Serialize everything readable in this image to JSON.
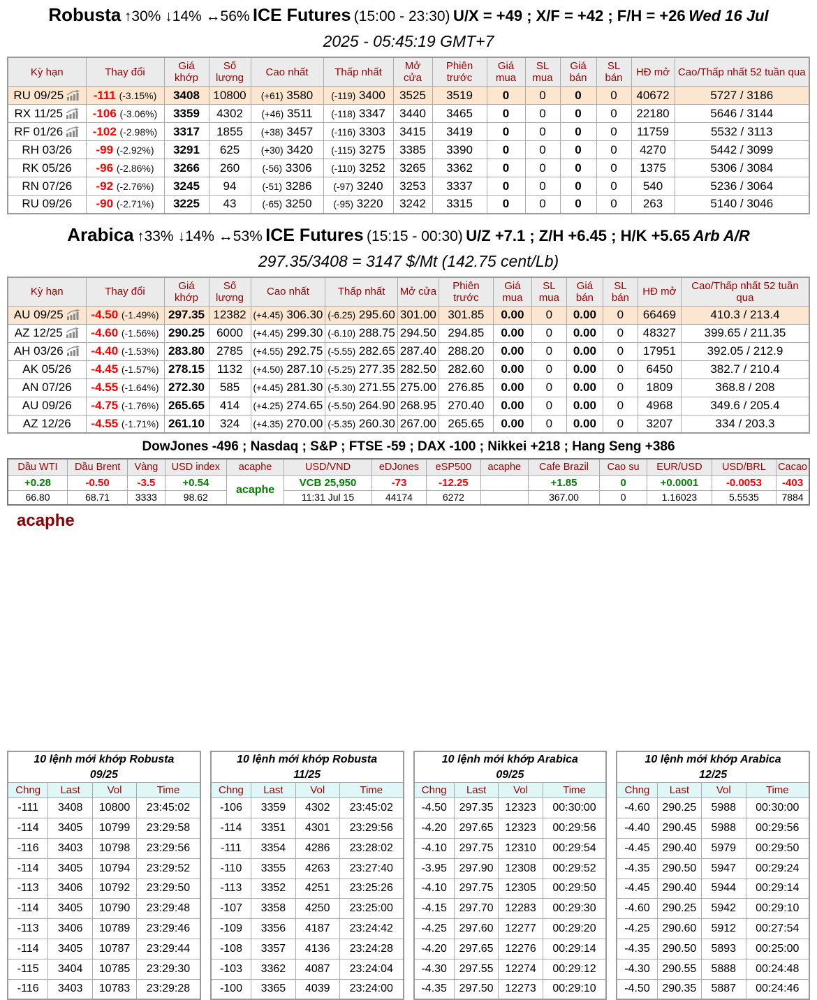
{
  "colors": {
    "accent_dark_red": "#990000",
    "negative_red": "#ff0000",
    "positive_green": "#008000",
    "highlight_row_bg": "#fce6cf",
    "table_header_bg": "#ebebeb",
    "order_header_bg": "#dff7f7",
    "brand_red": "#8b0000"
  },
  "robusta": {
    "heading": {
      "name": "Robusta",
      "stats": "↑30% ↓14% ↔56%",
      "exchange": "ICE Futures",
      "hours": "(15:00 - 23:30)",
      "spreads": "U/X = +49 ; X/F = +42 ; F/H = +26",
      "date": "Wed 16 Jul",
      "time_line": "2025 - 05:45:19 GMT+7"
    },
    "columns": [
      "Kỳ hạn",
      "Thay đổi",
      "Giá khớp",
      "Số lượng",
      "Cao nhất",
      "Thấp nhất",
      "Mở cửa",
      "Phiên trước",
      "Giá mua",
      "SL mua",
      "Giá bán",
      "SL bán",
      "HĐ mở",
      "Cao/Thấp nhất 52 tuần qua"
    ],
    "rows": [
      {
        "contract": "RU 09/25",
        "has_chart": true,
        "highlight": true,
        "change": "-111",
        "change_pct": "(-3.15%)",
        "last": "3408",
        "volume": "10800",
        "high_diff": "(+61)",
        "high": "3580",
        "low_diff": "(-119)",
        "low": "3400",
        "open": "3525",
        "prev": "3519",
        "bid": "0",
        "bid_qty": "0",
        "ask": "0",
        "ask_qty": "0",
        "open_interest": "40672",
        "range_52w": "5727 / 3186"
      },
      {
        "contract": "RX 11/25",
        "has_chart": true,
        "highlight": false,
        "change": "-106",
        "change_pct": "(-3.06%)",
        "last": "3359",
        "volume": "4302",
        "high_diff": "(+46)",
        "high": "3511",
        "low_diff": "(-118)",
        "low": "3347",
        "open": "3440",
        "prev": "3465",
        "bid": "0",
        "bid_qty": "0",
        "ask": "0",
        "ask_qty": "0",
        "open_interest": "22180",
        "range_52w": "5646 / 3144"
      },
      {
        "contract": "RF 01/26",
        "has_chart": true,
        "highlight": false,
        "change": "-102",
        "change_pct": "(-2.98%)",
        "last": "3317",
        "volume": "1855",
        "high_diff": "(+38)",
        "high": "3457",
        "low_diff": "(-116)",
        "low": "3303",
        "open": "3415",
        "prev": "3419",
        "bid": "0",
        "bid_qty": "0",
        "ask": "0",
        "ask_qty": "0",
        "open_interest": "11759",
        "range_52w": "5532 / 3113"
      },
      {
        "contract": "RH 03/26",
        "has_chart": false,
        "highlight": false,
        "change": "-99",
        "change_pct": "(-2.92%)",
        "last": "3291",
        "volume": "625",
        "high_diff": "(+30)",
        "high": "3420",
        "low_diff": "(-115)",
        "low": "3275",
        "open": "3385",
        "prev": "3390",
        "bid": "0",
        "bid_qty": "0",
        "ask": "0",
        "ask_qty": "0",
        "open_interest": "4270",
        "range_52w": "5442 / 3099"
      },
      {
        "contract": "RK 05/26",
        "has_chart": false,
        "highlight": false,
        "change": "-96",
        "change_pct": "(-2.86%)",
        "last": "3266",
        "volume": "260",
        "high_diff": "(-56)",
        "high": "3306",
        "low_diff": "(-110)",
        "low": "3252",
        "open": "3265",
        "prev": "3362",
        "bid": "0",
        "bid_qty": "0",
        "ask": "0",
        "ask_qty": "0",
        "open_interest": "1375",
        "range_52w": "5306 / 3084"
      },
      {
        "contract": "RN 07/26",
        "has_chart": false,
        "highlight": false,
        "change": "-92",
        "change_pct": "(-2.76%)",
        "last": "3245",
        "volume": "94",
        "high_diff": "(-51)",
        "high": "3286",
        "low_diff": "(-97)",
        "low": "3240",
        "open": "3253",
        "prev": "3337",
        "bid": "0",
        "bid_qty": "0",
        "ask": "0",
        "ask_qty": "0",
        "open_interest": "540",
        "range_52w": "5236 / 3064"
      },
      {
        "contract": "RU 09/26",
        "has_chart": false,
        "highlight": false,
        "change": "-90",
        "change_pct": "(-2.71%)",
        "last": "3225",
        "volume": "43",
        "high_diff": "(-65)",
        "high": "3250",
        "low_diff": "(-95)",
        "low": "3220",
        "open": "3242",
        "prev": "3315",
        "bid": "0",
        "bid_qty": "0",
        "ask": "0",
        "ask_qty": "0",
        "open_interest": "263",
        "range_52w": "5140 / 3046"
      }
    ]
  },
  "arabica": {
    "heading": {
      "name": "Arabica",
      "stats": "↑33% ↓14% ↔53%",
      "exchange": "ICE Futures",
      "hours": "(15:15 - 00:30)",
      "spreads": "U/Z +7.1 ; Z/H +6.45 ; H/K +5.65",
      "date": "Arb A/R",
      "time_line": "297.35/3408 = 3147 $/Mt (142.75 cent/Lb)"
    },
    "columns": [
      "Kỳ hạn",
      "Thay đổi",
      "Giá khớp",
      "Số lượng",
      "Cao nhất",
      "Thấp nhất",
      "Mở cửa",
      "Phiên trước",
      "Giá mua",
      "SL mua",
      "Giá bán",
      "SL bán",
      "HĐ mở",
      "Cao/Thấp nhất 52 tuần qua"
    ],
    "rows": [
      {
        "contract": "AU 09/25",
        "has_chart": true,
        "highlight": true,
        "change": "-4.50",
        "change_pct": "(-1.49%)",
        "last": "297.35",
        "volume": "12382",
        "high_diff": "(+4.45)",
        "high": "306.30",
        "low_diff": "(-6.25)",
        "low": "295.60",
        "open": "301.00",
        "prev": "301.85",
        "bid": "0.00",
        "bid_qty": "0",
        "ask": "0.00",
        "ask_qty": "0",
        "open_interest": "66469",
        "range_52w": "410.3 / 213.4"
      },
      {
        "contract": "AZ 12/25",
        "has_chart": true,
        "highlight": false,
        "change": "-4.60",
        "change_pct": "(-1.56%)",
        "last": "290.25",
        "volume": "6000",
        "high_diff": "(+4.45)",
        "high": "299.30",
        "low_diff": "(-6.10)",
        "low": "288.75",
        "open": "294.50",
        "prev": "294.85",
        "bid": "0.00",
        "bid_qty": "0",
        "ask": "0.00",
        "ask_qty": "0",
        "open_interest": "48327",
        "range_52w": "399.65 / 211.35"
      },
      {
        "contract": "AH 03/26",
        "has_chart": true,
        "highlight": false,
        "change": "-4.40",
        "change_pct": "(-1.53%)",
        "last": "283.80",
        "volume": "2785",
        "high_diff": "(+4.55)",
        "high": "292.75",
        "low_diff": "(-5.55)",
        "low": "282.65",
        "open": "287.40",
        "prev": "288.20",
        "bid": "0.00",
        "bid_qty": "0",
        "ask": "0.00",
        "ask_qty": "0",
        "open_interest": "17951",
        "range_52w": "392.05 / 212.9"
      },
      {
        "contract": "AK 05/26",
        "has_chart": false,
        "highlight": false,
        "change": "-4.45",
        "change_pct": "(-1.57%)",
        "last": "278.15",
        "volume": "1132",
        "high_diff": "(+4.50)",
        "high": "287.10",
        "low_diff": "(-5.25)",
        "low": "277.35",
        "open": "282.50",
        "prev": "282.60",
        "bid": "0.00",
        "bid_qty": "0",
        "ask": "0.00",
        "ask_qty": "0",
        "open_interest": "6450",
        "range_52w": "382.7 / 210.4"
      },
      {
        "contract": "AN 07/26",
        "has_chart": false,
        "highlight": false,
        "change": "-4.55",
        "change_pct": "(-1.64%)",
        "last": "272.30",
        "volume": "585",
        "high_diff": "(+4.45)",
        "high": "281.30",
        "low_diff": "(-5.30)",
        "low": "271.55",
        "open": "275.00",
        "prev": "276.85",
        "bid": "0.00",
        "bid_qty": "0",
        "ask": "0.00",
        "ask_qty": "0",
        "open_interest": "1809",
        "range_52w": "368.8 / 208"
      },
      {
        "contract": "AU 09/26",
        "has_chart": false,
        "highlight": false,
        "change": "-4.75",
        "change_pct": "(-1.76%)",
        "last": "265.65",
        "volume": "414",
        "high_diff": "(+4.25)",
        "high": "274.65",
        "low_diff": "(-5.50)",
        "low": "264.90",
        "open": "268.95",
        "prev": "270.40",
        "bid": "0.00",
        "bid_qty": "0",
        "ask": "0.00",
        "ask_qty": "0",
        "open_interest": "4968",
        "range_52w": "349.6 / 205.4"
      },
      {
        "contract": "AZ 12/26",
        "has_chart": false,
        "highlight": false,
        "change": "-4.55",
        "change_pct": "(-1.71%)",
        "last": "261.10",
        "volume": "324",
        "high_diff": "(+4.35)",
        "high": "270.00",
        "low_diff": "(-5.35)",
        "low": "260.30",
        "open": "267.00",
        "prev": "265.65",
        "bid": "0.00",
        "bid_qty": "0",
        "ask": "0.00",
        "ask_qty": "0",
        "open_interest": "3207",
        "range_52w": "334 / 203.3"
      }
    ]
  },
  "indices_line": "DowJones -496 ; Nasdaq ; S&P ; FTSE -59 ; DAX -100 ; Nikkei +218 ; Hang Seng +386",
  "ticker": {
    "items": [
      {
        "label": "Dầu WTI",
        "value": "+0.28",
        "color": "green",
        "sub": "66.80",
        "span": false
      },
      {
        "label": "Dầu Brent",
        "value": "-0.50",
        "color": "red",
        "sub": "68.71",
        "span": false
      },
      {
        "label": "Vàng",
        "value": "-3.5",
        "color": "red",
        "sub": "3333",
        "span": false
      },
      {
        "label": "USD index",
        "value": "+0.54",
        "color": "green",
        "sub": "98.62",
        "span": false
      },
      {
        "label": "acaphe",
        "value": "acaphe",
        "color": "green",
        "sub": "",
        "span": true
      },
      {
        "label": "USD/VND",
        "value": "VCB 25,950",
        "color": "green",
        "sub": "11:31 Jul 15",
        "span": false
      },
      {
        "label": "eDJones",
        "value": "-73",
        "color": "red",
        "sub": "44174",
        "span": false
      },
      {
        "label": "eSP500",
        "value": "-12.25",
        "color": "red",
        "sub": "6272",
        "span": false
      },
      {
        "label": "acaphe",
        "value": "",
        "color": "",
        "sub": "",
        "span": false
      },
      {
        "label": "Cafe Brazil",
        "value": "+1.85",
        "color": "green",
        "sub": "367.00",
        "span": false
      },
      {
        "label": "Cao su",
        "value": "0",
        "color": "green",
        "sub": "0",
        "span": false
      },
      {
        "label": "EUR/USD",
        "value": "+0.0001",
        "color": "green",
        "sub": "1.16023",
        "span": false
      },
      {
        "label": "USD/BRL",
        "value": "-0.0053",
        "color": "red",
        "sub": "5.5535",
        "span": false
      },
      {
        "label": "Cacao",
        "value": "-403",
        "color": "red",
        "sub": "7884",
        "span": false
      }
    ]
  },
  "brand": "acaphe",
  "order_tables": [
    {
      "title_line1": "10 lệnh mới khớp Robusta",
      "title_line2": "09/25",
      "headers": [
        "Chng",
        "Last",
        "Vol",
        "Time"
      ],
      "rows": [
        [
          "-111",
          "3408",
          "10800",
          "23:45:02"
        ],
        [
          "-114",
          "3405",
          "10799",
          "23:29:58"
        ],
        [
          "-116",
          "3403",
          "10798",
          "23:29:56"
        ],
        [
          "-114",
          "3405",
          "10794",
          "23:29:52"
        ],
        [
          "-113",
          "3406",
          "10792",
          "23:29:50"
        ],
        [
          "-114",
          "3405",
          "10790",
          "23:29:48"
        ],
        [
          "-113",
          "3406",
          "10789",
          "23:29:46"
        ],
        [
          "-114",
          "3405",
          "10787",
          "23:29:44"
        ],
        [
          "-115",
          "3404",
          "10785",
          "23:29:30"
        ],
        [
          "-116",
          "3403",
          "10783",
          "23:29:28"
        ]
      ]
    },
    {
      "title_line1": "10 lệnh mới khớp Robusta",
      "title_line2": "11/25",
      "headers": [
        "Chng",
        "Last",
        "Vol",
        "Time"
      ],
      "rows": [
        [
          "-106",
          "3359",
          "4302",
          "23:45:02"
        ],
        [
          "-114",
          "3351",
          "4301",
          "23:29:56"
        ],
        [
          "-111",
          "3354",
          "4286",
          "23:28:02"
        ],
        [
          "-110",
          "3355",
          "4263",
          "23:27:40"
        ],
        [
          "-113",
          "3352",
          "4251",
          "23:25:26"
        ],
        [
          "-107",
          "3358",
          "4250",
          "23:25:00"
        ],
        [
          "-109",
          "3356",
          "4187",
          "23:24:42"
        ],
        [
          "-108",
          "3357",
          "4136",
          "23:24:28"
        ],
        [
          "-103",
          "3362",
          "4087",
          "23:24:04"
        ],
        [
          "-100",
          "3365",
          "4039",
          "23:24:00"
        ]
      ]
    },
    {
      "title_line1": "10 lệnh mới khớp Arabica",
      "title_line2": "09/25",
      "headers": [
        "Chng",
        "Last",
        "Vol",
        "Time"
      ],
      "rows": [
        [
          "-4.50",
          "297.35",
          "12323",
          "00:30:00"
        ],
        [
          "-4.20",
          "297.65",
          "12323",
          "00:29:56"
        ],
        [
          "-4.10",
          "297.75",
          "12310",
          "00:29:54"
        ],
        [
          "-3.95",
          "297.90",
          "12308",
          "00:29:52"
        ],
        [
          "-4.10",
          "297.75",
          "12305",
          "00:29:50"
        ],
        [
          "-4.15",
          "297.70",
          "12283",
          "00:29:30"
        ],
        [
          "-4.25",
          "297.60",
          "12277",
          "00:29:20"
        ],
        [
          "-4.20",
          "297.65",
          "12276",
          "00:29:14"
        ],
        [
          "-4.30",
          "297.55",
          "12274",
          "00:29:12"
        ],
        [
          "-4.35",
          "297.50",
          "12273",
          "00:29:10"
        ]
      ]
    },
    {
      "title_line1": "10 lệnh mới khớp Arabica",
      "title_line2": "12/25",
      "headers": [
        "Chng",
        "Last",
        "Vol",
        "Time"
      ],
      "rows": [
        [
          "-4.60",
          "290.25",
          "5988",
          "00:30:00"
        ],
        [
          "-4.40",
          "290.45",
          "5988",
          "00:29:56"
        ],
        [
          "-4.45",
          "290.40",
          "5979",
          "00:29:50"
        ],
        [
          "-4.35",
          "290.50",
          "5947",
          "00:29:24"
        ],
        [
          "-4.45",
          "290.40",
          "5944",
          "00:29:14"
        ],
        [
          "-4.60",
          "290.25",
          "5942",
          "00:29:10"
        ],
        [
          "-4.25",
          "290.60",
          "5912",
          "00:27:54"
        ],
        [
          "-4.35",
          "290.50",
          "5893",
          "00:25:00"
        ],
        [
          "-4.30",
          "290.55",
          "5888",
          "00:24:48"
        ],
        [
          "-4.50",
          "290.35",
          "5887",
          "00:24:46"
        ]
      ]
    }
  ]
}
